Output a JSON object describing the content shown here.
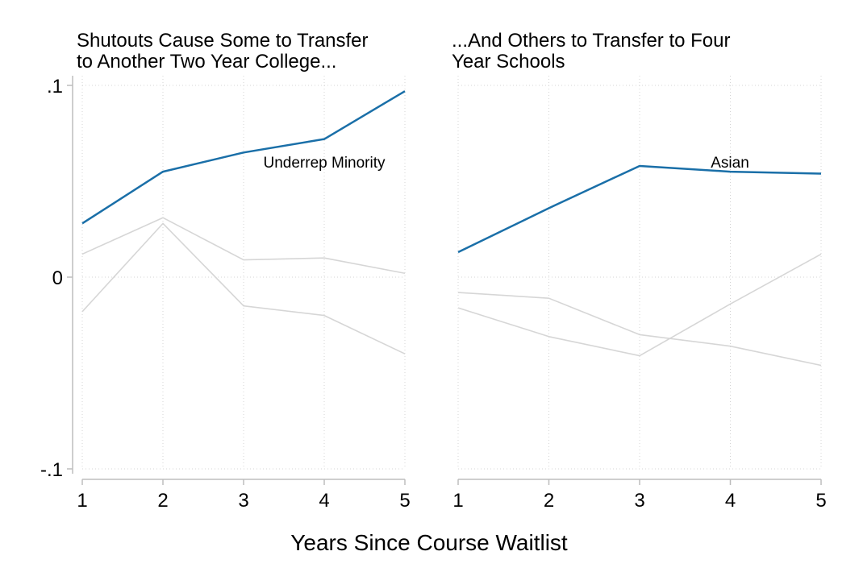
{
  "chart_data": [
    {
      "type": "line",
      "title_lines": [
        "Shutouts Cause Some to Transfer",
        "to Another Two Year College..."
      ],
      "x": [
        1,
        2,
        3,
        4,
        5
      ],
      "x_tick_labels": [
        "1",
        "2",
        "3",
        "4",
        "5"
      ],
      "y_tick_values": [
        0.1,
        0,
        -0.1
      ],
      "y_tick_labels": [
        ".1",
        "0",
        "-.1"
      ],
      "ylim": [
        -0.1,
        0.1
      ],
      "grid": true,
      "series": [
        {
          "name": "Underrep Minority",
          "values": [
            0.028,
            0.055,
            0.065,
            0.072,
            0.097
          ],
          "color": "#1a6fa8",
          "highlight": true,
          "label": "Underrep Minority"
        },
        {
          "values": [
            0.012,
            0.031,
            0.009,
            0.01,
            0.002
          ],
          "color": "#d6d6d6",
          "highlight": false
        },
        {
          "values": [
            -0.018,
            0.028,
            -0.015,
            -0.02,
            -0.04
          ],
          "color": "#d6d6d6",
          "highlight": false
        }
      ]
    },
    {
      "type": "line",
      "title_lines": [
        "...And Others to Transfer to Four",
        "Year Schools"
      ],
      "x": [
        1,
        2,
        3,
        4,
        5
      ],
      "x_tick_labels": [
        "1",
        "2",
        "3",
        "4",
        "5"
      ],
      "ylim": [
        -0.1,
        0.1
      ],
      "grid": true,
      "series": [
        {
          "name": "Asian",
          "values": [
            0.013,
            0.036,
            0.058,
            0.055,
            0.054
          ],
          "color": "#1a6fa8",
          "highlight": true,
          "label": "Asian"
        },
        {
          "values": [
            -0.008,
            -0.011,
            -0.03,
            -0.036,
            -0.046
          ],
          "color": "#d6d6d6",
          "highlight": false
        },
        {
          "values": [
            -0.016,
            -0.031,
            -0.041,
            -0.014,
            0.012
          ],
          "color": "#d6d6d6",
          "highlight": false
        }
      ]
    }
  ],
  "x_axis_title": "Years Since Course Waitlist"
}
